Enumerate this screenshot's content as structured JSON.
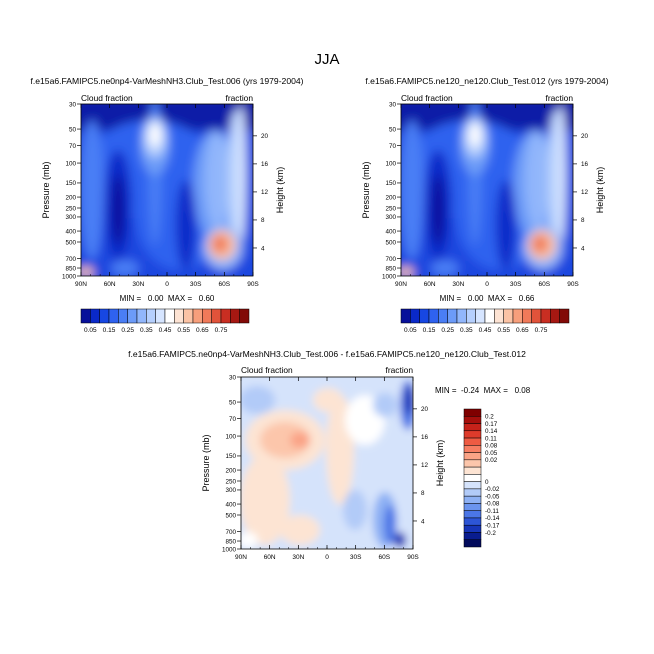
{
  "figure": {
    "title": "JJA"
  },
  "chart_data": [
    {
      "type": "heatmap",
      "title": "f.e15a6.FAMIPC5.ne0np4-VarMeshNH3.Club_Test.006 (yrs 1979-2004)",
      "left_label": "Cloud fraction",
      "right_label": "fraction",
      "xlabel": "",
      "ylabel": "Pressure (mb)",
      "y2label": "Height (km)",
      "x_ticks": [
        "90N",
        "60N",
        "30N",
        "0",
        "30S",
        "60S",
        "90S"
      ],
      "y_ticks": [
        "30",
        "50",
        "70",
        "100",
        "150",
        "200",
        "250",
        "300",
        "400",
        "500",
        "700",
        "850",
        "1000"
      ],
      "y_tick_values": [
        30,
        50,
        70,
        100,
        150,
        200,
        250,
        300,
        400,
        500,
        700,
        850,
        1000
      ],
      "y2_ticks": [
        "20",
        "16",
        "12",
        "8",
        "4"
      ],
      "y2_tick_values": [
        20,
        16,
        12,
        8,
        4
      ],
      "stats": "MIN =   0.00  MAX =   0.60",
      "colorbar": {
        "orientation": "horizontal",
        "labels": [
          "0.05",
          "0.15",
          "0.25",
          "0.35",
          "0.45",
          "0.55",
          "0.65",
          "0.75"
        ],
        "colors": [
          "#08109a",
          "#0a29c9",
          "#1747e3",
          "#2f62ef",
          "#4a7ef5",
          "#6c9bf8",
          "#91b6fb",
          "#b5cffd",
          "#d6e5ff",
          "#ffffff",
          "#fde3d3",
          "#fbc3a5",
          "#f79f7c",
          "#f07a5a",
          "#e1533a",
          "#c92e22",
          "#a61812",
          "#820a07"
        ]
      }
    },
    {
      "type": "heatmap",
      "title": "f.e15a6.FAMIPC5.ne120_ne120.Club_Test.012 (yrs 1979-2004)",
      "left_label": "Cloud fraction",
      "right_label": "fraction",
      "xlabel": "",
      "ylabel": "Pressure (mb)",
      "y2label": "Height (km)",
      "x_ticks": [
        "90N",
        "60N",
        "30N",
        "0",
        "30S",
        "60S",
        "90S"
      ],
      "y_ticks": [
        "30",
        "50",
        "70",
        "100",
        "150",
        "200",
        "250",
        "300",
        "400",
        "500",
        "700",
        "850",
        "1000"
      ],
      "y_tick_values": [
        30,
        50,
        70,
        100,
        150,
        200,
        250,
        300,
        400,
        500,
        700,
        850,
        1000
      ],
      "y2_ticks": [
        "20",
        "16",
        "12",
        "8",
        "4"
      ],
      "y2_tick_values": [
        20,
        16,
        12,
        8,
        4
      ],
      "stats": "MIN =   0.00  MAX =   0.66",
      "colorbar": {
        "orientation": "horizontal",
        "labels": [
          "0.05",
          "0.15",
          "0.25",
          "0.35",
          "0.45",
          "0.55",
          "0.65",
          "0.75"
        ],
        "colors": [
          "#08109a",
          "#0a29c9",
          "#1747e3",
          "#2f62ef",
          "#4a7ef5",
          "#6c9bf8",
          "#91b6fb",
          "#b5cffd",
          "#d6e5ff",
          "#ffffff",
          "#fde3d3",
          "#fbc3a5",
          "#f79f7c",
          "#f07a5a",
          "#e1533a",
          "#c92e22",
          "#a61812",
          "#820a07"
        ]
      }
    },
    {
      "type": "heatmap",
      "title": "f.e15a6.FAMIPC5.ne0np4-VarMeshNH3.Club_Test.006 - f.e15a6.FAMIPC5.ne120_ne120.Club_Test.012",
      "left_label": "Cloud fraction",
      "right_label": "fraction",
      "xlabel": "",
      "ylabel": "Pressure (mb)",
      "y2label": "Height (km)",
      "x_ticks": [
        "90N",
        "60N",
        "30N",
        "0",
        "30S",
        "60S",
        "90S"
      ],
      "y_ticks": [
        "30",
        "50",
        "70",
        "100",
        "150",
        "200",
        "250",
        "300",
        "400",
        "500",
        "700",
        "850",
        "1000"
      ],
      "y_tick_values": [
        30,
        50,
        70,
        100,
        150,
        200,
        250,
        300,
        400,
        500,
        700,
        850,
        1000
      ],
      "y2_ticks": [
        "20",
        "16",
        "12",
        "8",
        "4"
      ],
      "y2_tick_values": [
        20,
        16,
        12,
        8,
        4
      ],
      "stats": "MIN =  -0.24  MAX =   0.08",
      "colorbar": {
        "orientation": "vertical",
        "labels": [
          "0.2",
          "0.17",
          "0.14",
          "0.11",
          "0.08",
          "0.05",
          "0.02",
          "0",
          "-0.02",
          "-0.05",
          "-0.08",
          "-0.11",
          "-0.14",
          "-0.17",
          "-0.2"
        ],
        "colors": [
          "#7f0000",
          "#a50f0c",
          "#c5221a",
          "#de3b2b",
          "#ee5b43",
          "#f67e63",
          "#faa386",
          "#fcc6ab",
          "#fde4d3",
          "#ffffff",
          "#d5e3fb",
          "#b2cbf8",
          "#8eb1f4",
          "#6b94ee",
          "#4b76e6",
          "#2d55d6",
          "#1735b8",
          "#091c8f",
          "#020b5c"
        ]
      }
    }
  ]
}
